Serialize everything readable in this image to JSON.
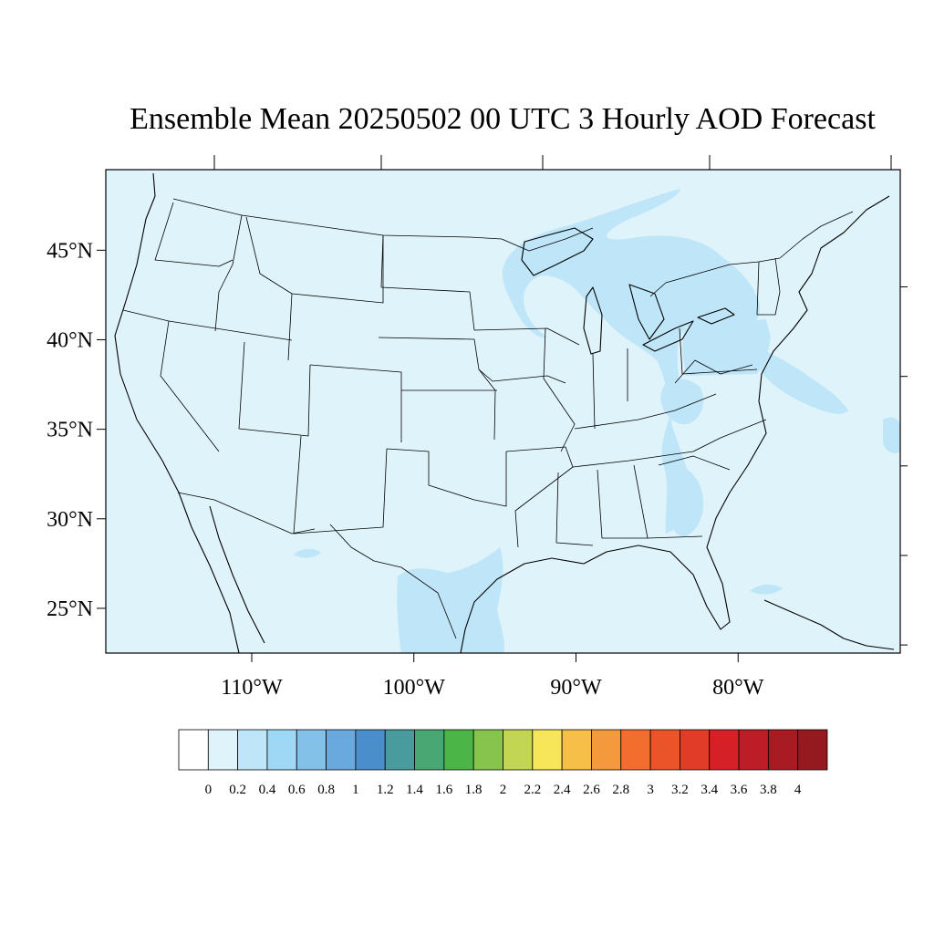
{
  "title": "Ensemble Mean 20250502 00 UTC 3 Hourly AOD Forecast",
  "map": {
    "projection": "latitude-longitude",
    "lon_range": [
      -119,
      -70
    ],
    "lat_range": [
      22.5,
      49.5
    ],
    "lat_ticks": [
      {
        "value": 45,
        "label": "45°N"
      },
      {
        "value": 40,
        "label": "40°N"
      },
      {
        "value": 35,
        "label": "35°N"
      },
      {
        "value": 30,
        "label": "30°N"
      },
      {
        "value": 25,
        "label": "25°N"
      }
    ],
    "lon_ticks": [
      {
        "value": -110,
        "label": "110°W"
      },
      {
        "value": -100,
        "label": "100°W"
      },
      {
        "value": -90,
        "label": "90°W"
      },
      {
        "value": -80,
        "label": "80°W"
      }
    ],
    "background_color": "#dff3fb",
    "outline_color": "#000000"
  },
  "aod_regions": [
    {
      "name": "Upper Great Lakes / Lake Superior",
      "level": "0.2-0.4",
      "color": "#bfe6f8"
    },
    {
      "name": "Michigan / Ohio / Pennsylvania / New York",
      "level": "0.2-0.4",
      "color": "#bfe6f8"
    },
    {
      "name": "Mid-Atlantic offshore",
      "level": "0.2-0.4",
      "color": "#bfe6f8"
    },
    {
      "name": "Appalachians / Carolinas / Georgia",
      "level": "0.2-0.4",
      "color": "#bfe6f8"
    },
    {
      "name": "South Texas / northeast Mexico",
      "level": "0.2-0.4",
      "color": "#bfe6f8"
    },
    {
      "name": "Texas Gulf coast",
      "level": "0.2-0.4",
      "color": "#bfe6f8"
    },
    {
      "name": "Ontario / Lake Huron north",
      "level": "0.2-0.4",
      "color": "#bfe6f8"
    }
  ],
  "colorbar": {
    "labels": [
      "0",
      "0.2",
      "0.4",
      "0.6",
      "0.8",
      "1",
      "1.2",
      "1.4",
      "1.6",
      "1.8",
      "2",
      "2.2",
      "2.4",
      "2.6",
      "2.8",
      "3",
      "3.2",
      "3.4",
      "3.6",
      "3.8",
      "4"
    ],
    "colors": [
      "#ffffff",
      "#dff3fb",
      "#bfe6f8",
      "#9ed8f4",
      "#84c1e8",
      "#6aa9dd",
      "#4a8ecb",
      "#4a9b9d",
      "#48a773",
      "#4bb548",
      "#86c44e",
      "#c3d653",
      "#f7e658",
      "#f6bf47",
      "#f59a3c",
      "#f36d2f",
      "#eb5429",
      "#e03c28",
      "#d62028",
      "#bd1d26",
      "#a91b23",
      "#951a1f"
    ]
  }
}
